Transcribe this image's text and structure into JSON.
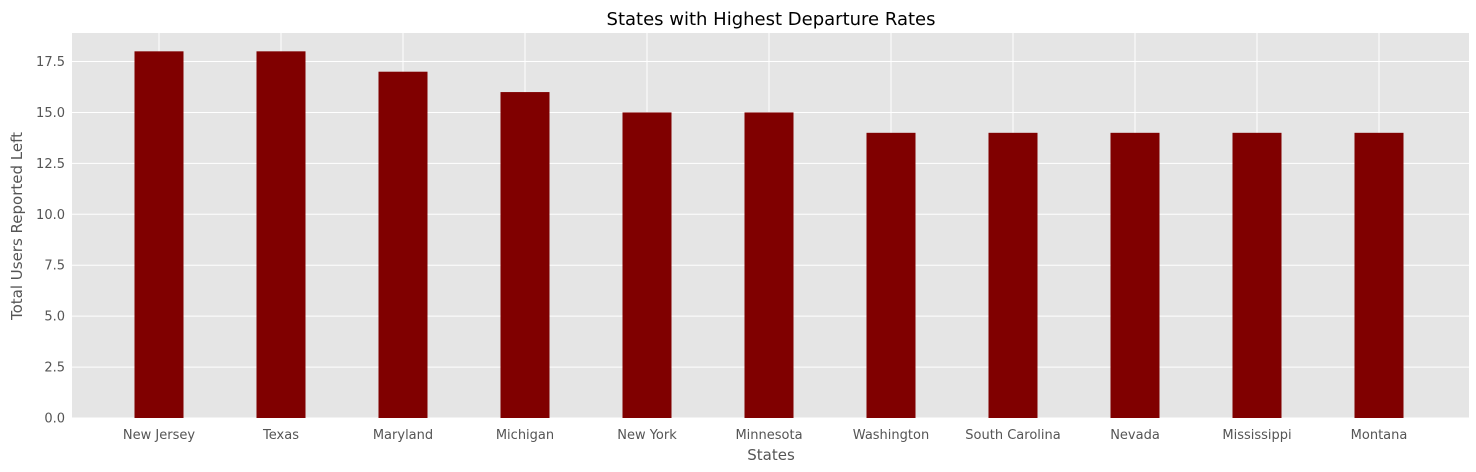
{
  "chart_data": {
    "type": "bar",
    "title": "States with Highest Departure Rates",
    "xlabel": "States",
    "ylabel": "Total Users Reported Left",
    "categories": [
      "New Jersey",
      "Texas",
      "Maryland",
      "Michigan",
      "New York",
      "Minnesota",
      "Washington",
      "South Carolina",
      "Nevada",
      "Mississippi",
      "Montana"
    ],
    "values": [
      18,
      18,
      17,
      16,
      15,
      15,
      14,
      14,
      14,
      14,
      14
    ],
    "ylim": [
      0,
      18.9
    ],
    "yticks": [
      "0.0",
      "2.5",
      "5.0",
      "7.5",
      "10.0",
      "12.5",
      "15.0",
      "17.5"
    ],
    "grid": true,
    "bar_color": "#800000",
    "plot_background": "#e5e5e5",
    "grid_color": "#ffffff"
  }
}
